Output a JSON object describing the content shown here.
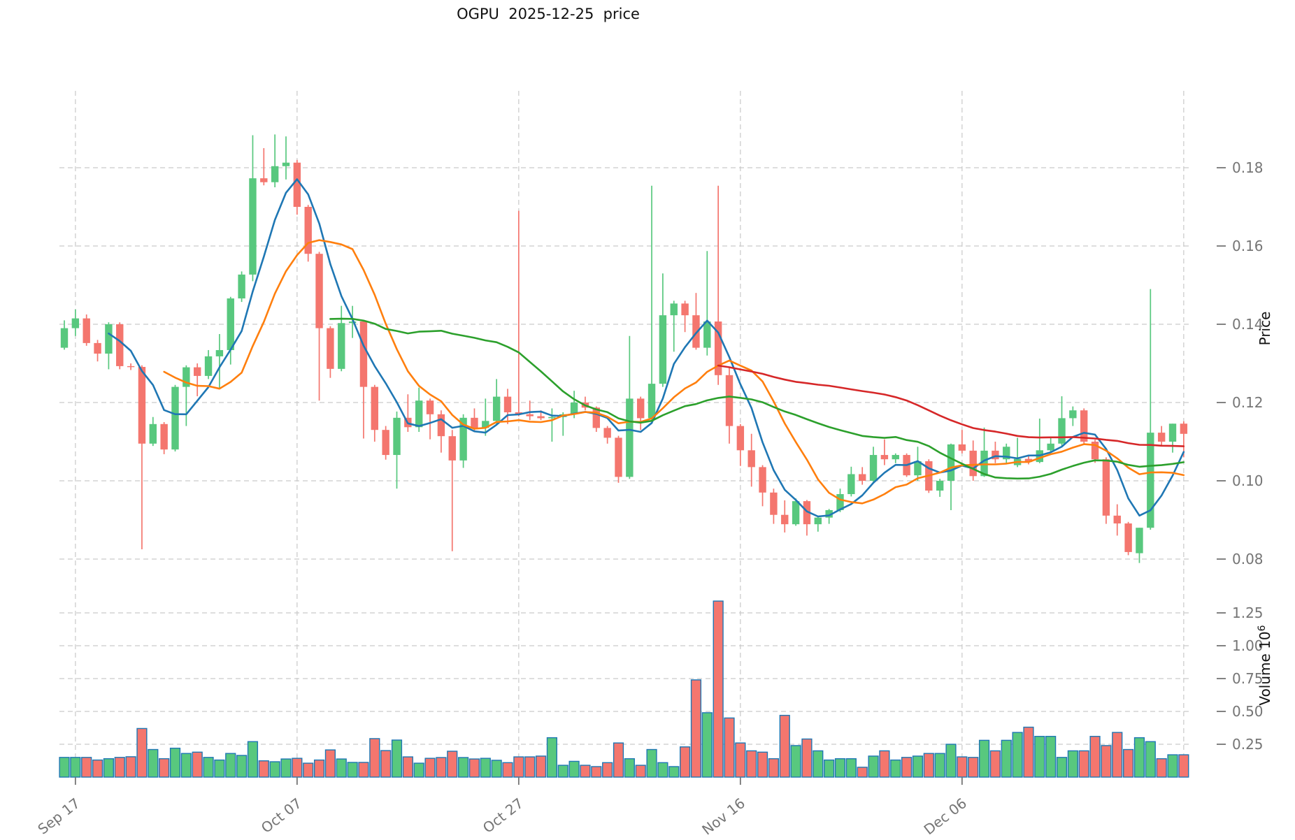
{
  "title": "OGPU  2025-12-25  price",
  "chart_data": {
    "type": "candlestick",
    "title": "OGPU  2025-12-25  price",
    "x_tick_labels": [
      "Sep 17",
      "Oct 07",
      "Oct 27",
      "Nov 16",
      "Dec 06"
    ],
    "x_tick_indices": [
      1,
      21,
      41,
      61,
      81
    ],
    "price_axis": {
      "label": "Price",
      "ticks": [
        0.08,
        0.1,
        0.12,
        0.14,
        0.16,
        0.18
      ],
      "tick_labels": [
        "0.08",
        "0.10",
        "0.12",
        "0.14",
        "0.16",
        "0.18"
      ]
    },
    "volume_axis": {
      "label": "Volume",
      "unit_base": "10",
      "unit_exponent": "6",
      "ticks": [
        0.25,
        0.5,
        0.75,
        1.0,
        1.25
      ],
      "tick_labels": [
        "0.25",
        "0.50",
        "0.75",
        "1.00",
        "1.25"
      ]
    },
    "moving_averages": [
      {
        "window": 5,
        "color": "#1f77b4"
      },
      {
        "window": 10,
        "color": "#ff7f0e"
      },
      {
        "window": 25,
        "color": "#2ca02c"
      },
      {
        "window": 60,
        "color": "#d62728"
      }
    ],
    "colors": {
      "up": "#58c87e",
      "down": "#f4766e",
      "volume_edge": "#1f77b4",
      "grid": "#c9c9c9",
      "tick_text": "#757575",
      "axis_label_text": "#111111"
    },
    "ohlcv": [
      [
        0.134,
        0.141,
        0.1335,
        0.139,
        0.15
      ],
      [
        0.139,
        0.1438,
        0.137,
        0.1415,
        0.15
      ],
      [
        0.1415,
        0.1425,
        0.1345,
        0.1352,
        0.15
      ],
      [
        0.1352,
        0.136,
        0.1305,
        0.1325,
        0.13
      ],
      [
        0.1325,
        0.1405,
        0.1285,
        0.14,
        0.14
      ],
      [
        0.14,
        0.1405,
        0.1285,
        0.1293,
        0.15
      ],
      [
        0.1293,
        0.13,
        0.1283,
        0.1291,
        0.155
      ],
      [
        0.1291,
        0.1295,
        0.0825,
        0.1095,
        0.37
      ],
      [
        0.1095,
        0.1163,
        0.1089,
        0.1145,
        0.21
      ],
      [
        0.1145,
        0.115,
        0.1068,
        0.108,
        0.14
      ],
      [
        0.108,
        0.1245,
        0.1075,
        0.124,
        0.22
      ],
      [
        0.124,
        0.1295,
        0.114,
        0.129,
        0.18
      ],
      [
        0.129,
        0.13,
        0.1216,
        0.1268,
        0.19
      ],
      [
        0.1268,
        0.1334,
        0.126,
        0.1318,
        0.15
      ],
      [
        0.1318,
        0.1375,
        0.1234,
        0.1334,
        0.13
      ],
      [
        0.1334,
        0.147,
        0.1297,
        0.1466,
        0.18
      ],
      [
        0.1466,
        0.1535,
        0.1457,
        0.1527,
        0.165
      ],
      [
        0.1527,
        0.1883,
        0.151,
        0.1773,
        0.27
      ],
      [
        0.1773,
        0.185,
        0.1755,
        0.1763,
        0.124
      ],
      [
        0.1763,
        0.1885,
        0.175,
        0.1804,
        0.117
      ],
      [
        0.1804,
        0.188,
        0.177,
        0.1813,
        0.138
      ],
      [
        0.1813,
        0.182,
        0.168,
        0.17,
        0.143
      ],
      [
        0.17,
        0.1705,
        0.156,
        0.158,
        0.106
      ],
      [
        0.158,
        0.1585,
        0.1205,
        0.139,
        0.13
      ],
      [
        0.139,
        0.1395,
        0.1263,
        0.1286,
        0.207
      ],
      [
        0.1286,
        0.1447,
        0.128,
        0.1403,
        0.138
      ],
      [
        0.1403,
        0.1447,
        0.1365,
        0.1407,
        0.112
      ],
      [
        0.1407,
        0.141,
        0.1108,
        0.124,
        0.112
      ],
      [
        0.124,
        0.1245,
        0.11,
        0.113,
        0.293
      ],
      [
        0.113,
        0.114,
        0.1054,
        0.1066,
        0.202
      ],
      [
        0.1066,
        0.1177,
        0.098,
        0.1161,
        0.282
      ],
      [
        0.1161,
        0.1221,
        0.1125,
        0.1137,
        0.154
      ],
      [
        0.1137,
        0.1238,
        0.1125,
        0.1205,
        0.106
      ],
      [
        0.1205,
        0.121,
        0.1106,
        0.117,
        0.143
      ],
      [
        0.117,
        0.118,
        0.1072,
        0.1114,
        0.149
      ],
      [
        0.1114,
        0.113,
        0.082,
        0.1052,
        0.197
      ],
      [
        0.1052,
        0.117,
        0.1033,
        0.1161,
        0.149
      ],
      [
        0.1161,
        0.1185,
        0.1125,
        0.1135,
        0.138
      ],
      [
        0.1135,
        0.121,
        0.1115,
        0.1153,
        0.143
      ],
      [
        0.1153,
        0.126,
        0.1145,
        0.1215,
        0.128
      ],
      [
        0.1215,
        0.1235,
        0.1145,
        0.1175,
        0.11
      ],
      [
        0.1175,
        0.169,
        0.1165,
        0.117,
        0.154
      ],
      [
        0.117,
        0.1205,
        0.1155,
        0.1165,
        0.154
      ],
      [
        0.1165,
        0.118,
        0.1155,
        0.116,
        0.16
      ],
      [
        0.116,
        0.1185,
        0.11,
        0.1163,
        0.3
      ],
      [
        0.1163,
        0.1175,
        0.1115,
        0.117,
        0.09
      ],
      [
        0.117,
        0.123,
        0.116,
        0.12,
        0.12
      ],
      [
        0.12,
        0.1215,
        0.118,
        0.1187,
        0.09
      ],
      [
        0.1187,
        0.119,
        0.1125,
        0.1135,
        0.08
      ],
      [
        0.1135,
        0.114,
        0.1095,
        0.111,
        0.11
      ],
      [
        0.111,
        0.1115,
        0.0995,
        0.101,
        0.26
      ],
      [
        0.101,
        0.137,
        0.1005,
        0.121,
        0.14
      ],
      [
        0.121,
        0.1215,
        0.113,
        0.116,
        0.09
      ],
      [
        0.116,
        0.1754,
        0.1155,
        0.1248,
        0.21
      ],
      [
        0.1248,
        0.153,
        0.124,
        0.1423,
        0.11
      ],
      [
        0.1423,
        0.146,
        0.133,
        0.1453,
        0.08
      ],
      [
        0.1453,
        0.146,
        0.138,
        0.1423,
        0.23
      ],
      [
        0.1423,
        0.148,
        0.1335,
        0.134,
        0.74
      ],
      [
        0.134,
        0.1587,
        0.132,
        0.1407,
        0.49
      ],
      [
        0.1407,
        0.1754,
        0.1245,
        0.127,
        1.34
      ],
      [
        0.127,
        0.129,
        0.1095,
        0.114,
        0.45
      ],
      [
        0.114,
        0.1145,
        0.1038,
        0.1078,
        0.26
      ],
      [
        0.1078,
        0.112,
        0.0985,
        0.1035,
        0.2
      ],
      [
        0.1035,
        0.104,
        0.0935,
        0.097,
        0.19
      ],
      [
        0.097,
        0.098,
        0.089,
        0.0913,
        0.14
      ],
      [
        0.0913,
        0.095,
        0.0868,
        0.0889,
        0.47
      ],
      [
        0.0889,
        0.0955,
        0.0885,
        0.0948,
        0.24
      ],
      [
        0.0948,
        0.0951,
        0.086,
        0.0889,
        0.29
      ],
      [
        0.0889,
        0.091,
        0.087,
        0.0906,
        0.2
      ],
      [
        0.0906,
        0.0928,
        0.089,
        0.0925,
        0.13
      ],
      [
        0.0925,
        0.098,
        0.092,
        0.0966,
        0.14
      ],
      [
        0.0966,
        0.1036,
        0.096,
        0.1017,
        0.14
      ],
      [
        0.1017,
        0.1035,
        0.099,
        0.1,
        0.075
      ],
      [
        0.1,
        0.1087,
        0.0995,
        0.1066,
        0.16
      ],
      [
        0.1066,
        0.1106,
        0.104,
        0.1055,
        0.2
      ],
      [
        0.1055,
        0.107,
        0.1045,
        0.1066,
        0.13
      ],
      [
        0.1066,
        0.107,
        0.101,
        0.1014,
        0.15
      ],
      [
        0.1014,
        0.1087,
        0.1,
        0.105,
        0.16
      ],
      [
        0.105,
        0.1055,
        0.0969,
        0.0975,
        0.18
      ],
      [
        0.0975,
        0.1005,
        0.0959,
        0.1,
        0.18
      ],
      [
        0.1,
        0.1095,
        0.0925,
        0.1093,
        0.25
      ],
      [
        0.1093,
        0.113,
        0.107,
        0.1077,
        0.154
      ],
      [
        0.1077,
        0.1103,
        0.1,
        0.1012,
        0.15
      ],
      [
        0.1012,
        0.1136,
        0.101,
        0.1077,
        0.28
      ],
      [
        0.1077,
        0.11,
        0.1045,
        0.1055,
        0.2
      ],
      [
        0.1055,
        0.1095,
        0.1043,
        0.1087,
        0.28
      ],
      [
        0.104,
        0.111,
        0.1035,
        0.1056,
        0.34
      ],
      [
        0.1056,
        0.1065,
        0.1042,
        0.1048,
        0.38
      ],
      [
        0.1048,
        0.1159,
        0.1045,
        0.1078,
        0.31
      ],
      [
        0.1078,
        0.111,
        0.1072,
        0.1095,
        0.31
      ],
      [
        0.1095,
        0.1216,
        0.109,
        0.116,
        0.15
      ],
      [
        0.116,
        0.119,
        0.114,
        0.118,
        0.2
      ],
      [
        0.118,
        0.1185,
        0.1095,
        0.11,
        0.2
      ],
      [
        0.11,
        0.1105,
        0.1046,
        0.1055,
        0.31
      ],
      [
        0.1055,
        0.106,
        0.089,
        0.0911,
        0.24
      ],
      [
        0.0911,
        0.094,
        0.086,
        0.0891,
        0.34
      ],
      [
        0.0891,
        0.0895,
        0.081,
        0.0818,
        0.21
      ],
      [
        0.0815,
        0.088,
        0.079,
        0.088,
        0.3
      ],
      [
        0.088,
        0.149,
        0.0875,
        0.1123,
        0.27
      ],
      [
        0.1123,
        0.114,
        0.109,
        0.11,
        0.14
      ],
      [
        0.11,
        0.1146,
        0.1072,
        0.1146,
        0.17
      ],
      [
        0.1146,
        0.1152,
        0.106,
        0.112,
        0.17
      ]
    ]
  }
}
